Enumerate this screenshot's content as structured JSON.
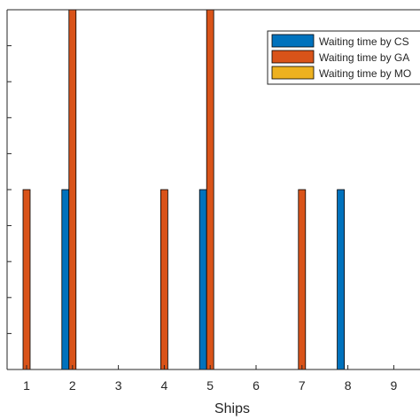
{
  "chart_data": {
    "type": "bar",
    "title": "",
    "xlabel": "Ships",
    "ylabel": "",
    "categories": [
      "1",
      "2",
      "3",
      "4",
      "5",
      "6",
      "7",
      "8",
      "9"
    ],
    "ylim": [
      0,
      10
    ],
    "legend_position": "top-right",
    "grid": false,
    "series": [
      {
        "name": "Waiting time by CS",
        "color": "#0072BD",
        "values": [
          0,
          5,
          0,
          0,
          5,
          0,
          0,
          5,
          0
        ]
      },
      {
        "name": "Waiting time by GA",
        "color": "#D95319",
        "values": [
          5,
          10,
          0,
          5,
          10,
          0,
          5,
          0,
          0
        ]
      },
      {
        "name": "Waiting time by MO",
        "color": "#EDB120",
        "values": [
          0,
          0,
          0,
          0,
          0,
          0,
          0,
          0,
          0
        ]
      }
    ]
  }
}
